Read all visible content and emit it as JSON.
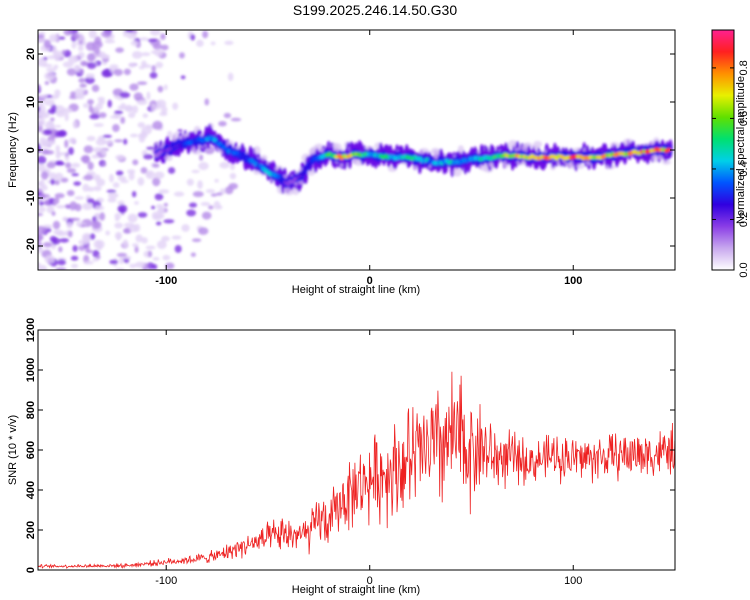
{
  "figure_title": "S199.2025.246.14.50.G30",
  "chart_data": [
    {
      "type": "heatmap",
      "title": "",
      "xlabel": "Height of straight line (km)",
      "ylabel": "Frequency (Hz)",
      "xlim": [
        -163,
        150
      ],
      "ylim": [
        -25,
        25
      ],
      "xticks": [
        -100,
        0,
        100
      ],
      "yticks": [
        -20,
        -10,
        0,
        10,
        20
      ],
      "colorbar": {
        "label": "Normalized spectral amplitude",
        "range": [
          0.0,
          0.95
        ],
        "ticks": [
          0.0,
          0.2,
          0.4,
          0.6,
          0.8
        ],
        "tick_labels": [
          "0.0",
          "0.2",
          "0.4",
          "0.6",
          "0.8"
        ],
        "colormap": [
          "#ffffff",
          "#c8a8ee",
          "#8a3de6",
          "#3000e0",
          "#0055ff",
          "#00d0e8",
          "#00e070",
          "#60e000",
          "#e8f000",
          "#ff9000",
          "#ff2020",
          "#ff2090"
        ]
      },
      "ridge": {
        "x": [
          -105,
          -95,
          -85,
          -78,
          -70,
          -62,
          -55,
          -48,
          -40,
          -34,
          -28,
          -20,
          -14,
          -8,
          0,
          10,
          20,
          30,
          40,
          50,
          60,
          70,
          80,
          90,
          100,
          110,
          120,
          130,
          140,
          148
        ],
        "y": [
          -1,
          1,
          2,
          2.5,
          0,
          -1.5,
          -3,
          -5,
          -7,
          -5.5,
          -2,
          -1,
          -1.5,
          -1,
          -1,
          -1.5,
          -1.5,
          -2.5,
          -2.5,
          -2,
          -1.5,
          -1,
          -1.5,
          -1.5,
          -1.5,
          -1.5,
          -1,
          -0.5,
          0,
          0
        ],
        "amplitude": [
          0.15,
          0.3,
          0.4,
          0.45,
          0.4,
          0.35,
          0.4,
          0.5,
          0.2,
          0.25,
          0.35,
          0.6,
          0.9,
          0.75,
          0.5,
          0.55,
          0.55,
          0.45,
          0.5,
          0.45,
          0.6,
          0.85,
          0.85,
          0.9,
          0.9,
          0.85,
          0.8,
          0.85,
          0.9,
          0.85
        ]
      },
      "noise_region_x": [
        -163,
        -100
      ]
    },
    {
      "type": "line",
      "title": "",
      "xlabel": "Height of straight line (km)",
      "ylabel": "SNR (10 * v/v)",
      "xlim": [
        -163,
        150
      ],
      "ylim": [
        0,
        1200
      ],
      "xticks": [
        -100,
        0,
        100
      ],
      "yticks": [
        0,
        200,
        400,
        600,
        800,
        1000,
        1200
      ],
      "series": [
        {
          "name": "SNR",
          "color": "#ee2222",
          "envelope": {
            "x": [
              -163,
              -120,
              -100,
              -85,
              -75,
              -65,
              -55,
              -45,
              -35,
              -30,
              -25,
              -20,
              -15,
              -10,
              -5,
              0,
              5,
              10,
              15,
              20,
              25,
              30,
              35,
              40,
              45,
              50,
              55,
              60,
              70,
              80,
              90,
              100,
              110,
              120,
              130,
              140,
              150
            ],
            "center": [
              18,
              22,
              40,
              55,
              70,
              110,
              140,
              170,
              180,
              170,
              260,
              230,
              330,
              380,
              420,
              450,
              470,
              500,
              520,
              550,
              580,
              600,
              620,
              650,
              640,
              600,
              620,
              560,
              560,
              540,
              570,
              560,
              560,
              570,
              580,
              580,
              600
            ],
            "amplitude": [
              10,
              12,
              20,
              30,
              40,
              60,
              80,
              110,
              110,
              120,
              150,
              160,
              180,
              220,
              220,
              250,
              270,
              300,
              320,
              340,
              350,
              380,
              400,
              420,
              420,
              350,
              280,
              220,
              160,
              130,
              140,
              150,
              150,
              140,
              150,
              150,
              150
            ]
          }
        }
      ]
    }
  ]
}
